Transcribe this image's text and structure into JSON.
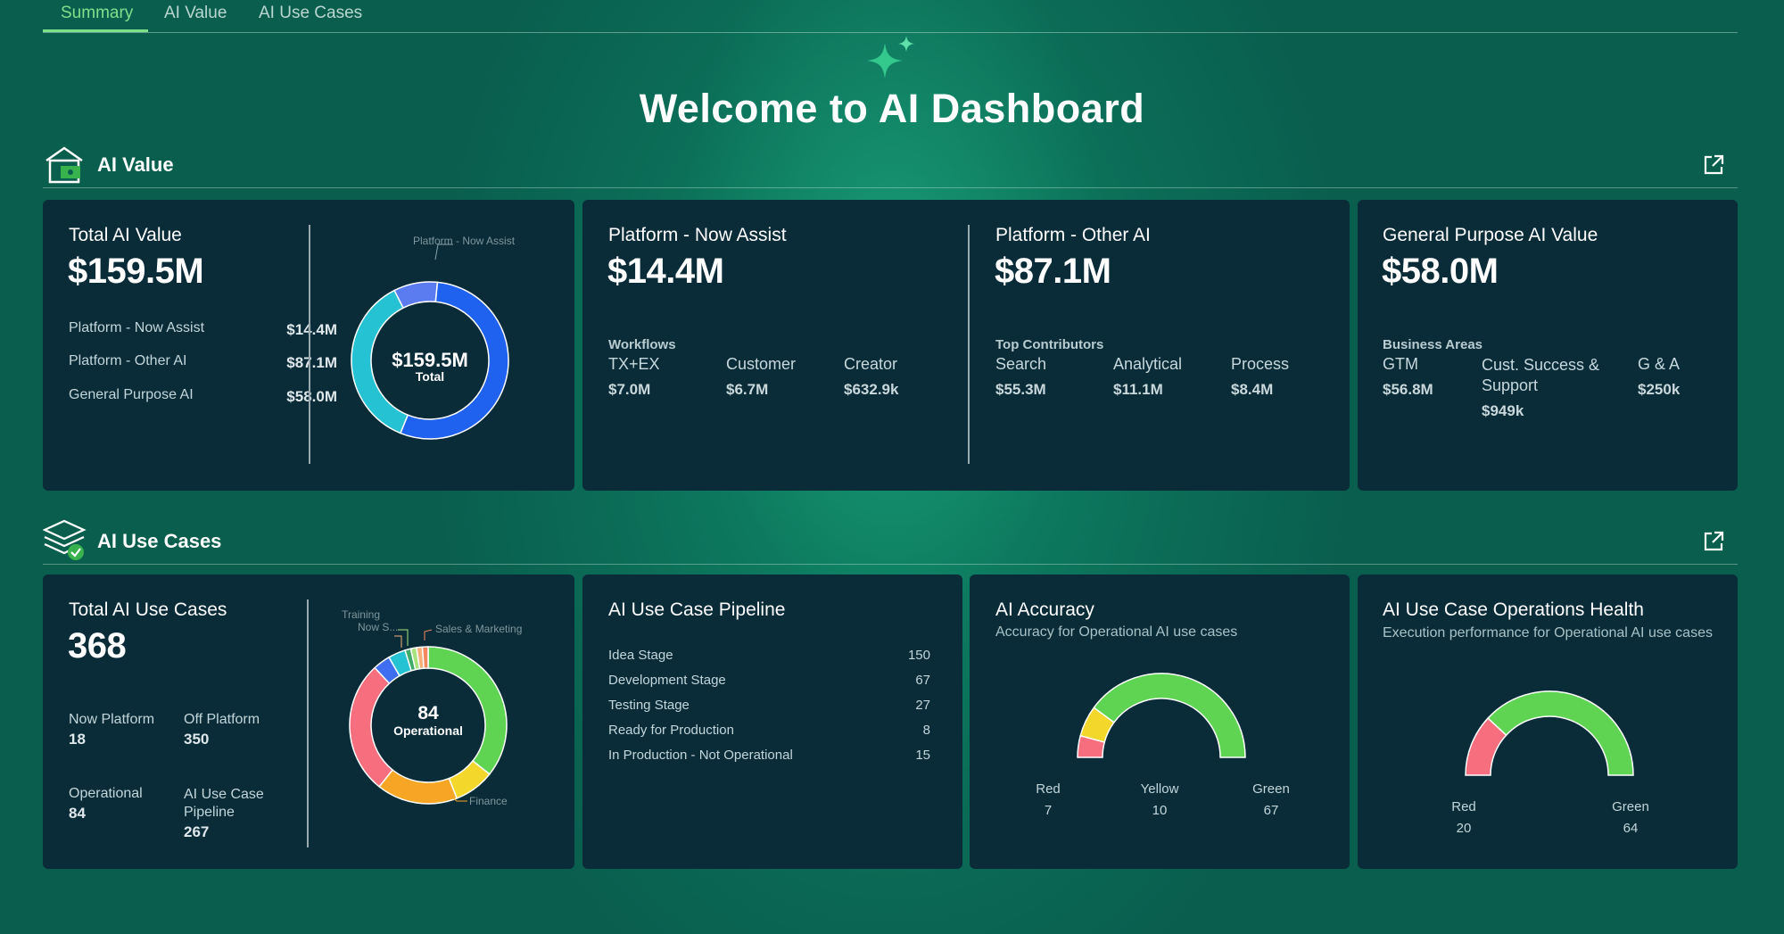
{
  "tabs": [
    {
      "label": "Summary",
      "active": true
    },
    {
      "label": "AI Value",
      "active": false
    },
    {
      "label": "AI Use Cases",
      "active": false
    }
  ],
  "hero": {
    "title": "Welcome to AI Dashboard"
  },
  "colors": {
    "accent": "#7fe08a",
    "card_bg": "#0a2b38",
    "donut_blue": "#1f62f0",
    "donut_teal": "#25c2d4",
    "red": "#f76e7f",
    "yellow": "#f3d72a",
    "green": "#5fd452",
    "orange": "#f6a524"
  },
  "ai_value": {
    "section_title": "AI Value",
    "total": {
      "title": "Total AI Value",
      "value": "$159.5M",
      "rows": [
        {
          "label": "Platform - Now Assist",
          "value": "$14.4M"
        },
        {
          "label": "Platform - Other AI",
          "value": "$87.1M"
        },
        {
          "label": "General Purpose AI",
          "value": "$58.0M"
        }
      ],
      "donut": {
        "center_value": "$159.5M",
        "center_label": "Total",
        "callout": "Platform - Now Assist",
        "segments": [
          {
            "name": "Platform - Now Assist",
            "value": 14.4,
            "color": "#5b7cf0"
          },
          {
            "name": "Platform - Other AI",
            "value": 87.1,
            "color": "#1f62f0"
          },
          {
            "name": "General Purpose AI",
            "value": 58.0,
            "color": "#25c2d4"
          }
        ]
      }
    },
    "now_assist": {
      "title": "Platform - Now Assist",
      "value": "$14.4M",
      "group_label": "Workflows",
      "columns": [
        {
          "name": "TX+EX",
          "value": "$7.0M"
        },
        {
          "name": "Customer",
          "value": "$6.7M"
        },
        {
          "name": "Creator",
          "value": "$632.9k"
        }
      ]
    },
    "other_ai": {
      "title": "Platform - Other AI",
      "value": "$87.1M",
      "group_label": "Top Contributors",
      "columns": [
        {
          "name": "Search",
          "value": "$55.3M"
        },
        {
          "name": "Analytical",
          "value": "$11.1M"
        },
        {
          "name": "Process",
          "value": "$8.4M"
        }
      ]
    },
    "general": {
      "title": "General Purpose AI Value",
      "value": "$58.0M",
      "group_label": "Business Areas",
      "columns": [
        {
          "name": "GTM",
          "value": "$56.8M"
        },
        {
          "name": "Cust. Success & Support",
          "value": "$949k"
        },
        {
          "name": "G & A",
          "value": "$250k"
        }
      ]
    }
  },
  "use_cases": {
    "section_title": "AI Use Cases",
    "total": {
      "title": "Total AI Use Cases",
      "value": "368",
      "now_platform_label": "Now Platform",
      "now_platform_value": "18",
      "off_platform_label": "Off Platform",
      "off_platform_value": "350",
      "operational_label": "Operational",
      "operational_value": "84",
      "pipeline_label": "AI Use Case Pipeline",
      "pipeline_value": "267",
      "donut": {
        "center_value": "84",
        "center_label": "Operational",
        "callout_training": "Training",
        "callout_now": "Now S...",
        "callout_sales": "Sales & Marketing",
        "callout_finance": "Finance",
        "segments": [
          {
            "name": "Sales & Marketing",
            "value": 30,
            "color": "#5fd452"
          },
          {
            "name": "Yellow",
            "value": 7,
            "color": "#f3d72a"
          },
          {
            "name": "Finance",
            "value": 14,
            "color": "#f6a524"
          },
          {
            "name": "Pink",
            "value": 23,
            "color": "#f76e7f"
          },
          {
            "name": "Blue",
            "value": 3,
            "color": "#3f6ff0"
          },
          {
            "name": "Teal",
            "value": 3,
            "color": "#25c2d4"
          },
          {
            "name": "Green small",
            "value": 1,
            "color": "#3fa968"
          },
          {
            "name": "Light green",
            "value": 1,
            "color": "#a7e37a"
          },
          {
            "name": "Training",
            "value": 1,
            "color": "#f6b07a"
          },
          {
            "name": "Now S...",
            "value": 1,
            "color": "#f4875f"
          }
        ]
      }
    },
    "pipeline": {
      "title": "AI Use Case Pipeline",
      "rows": [
        {
          "label": "Idea Stage",
          "value": "150"
        },
        {
          "label": "Development Stage",
          "value": "67"
        },
        {
          "label": "Testing Stage",
          "value": "27"
        },
        {
          "label": "Ready for Production",
          "value": "8"
        },
        {
          "label": "In Production - Not Operational",
          "value": "15"
        }
      ]
    },
    "accuracy": {
      "title": "AI Accuracy",
      "subtitle": "Accuracy for Operational AI use cases",
      "red_label": "Red",
      "red_value": "7",
      "red": 7,
      "yellow_label": "Yellow",
      "yellow_value": "10",
      "yellow": 10,
      "green_label": "Green",
      "green_value": "67",
      "green": 67
    },
    "health": {
      "title": "AI Use Case Operations Health",
      "subtitle": "Execution performance for Operational AI use cases",
      "red_label": "Red",
      "red_value": "20",
      "red": 20,
      "green_label": "Green",
      "green_value": "64",
      "green": 64
    }
  }
}
